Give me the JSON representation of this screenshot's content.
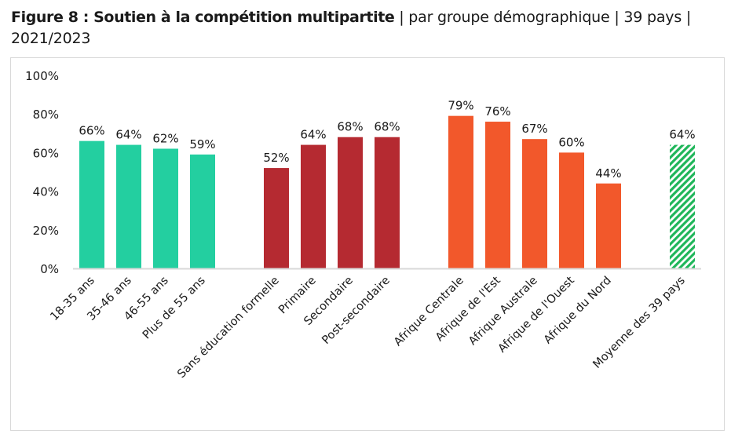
{
  "title": {
    "bold": "Figure 8 : Soutien à la compétition multipartite",
    "rest": " | par groupe démographique | 39 pays | 2021/2023"
  },
  "colors": {
    "age": "#23cfa0",
    "education": "#b52a31",
    "region": "#f2582b",
    "average": "#1fb65a",
    "axis": "#d9d9d9"
  },
  "chart_data": {
    "type": "bar",
    "title": "Figure 8 : Soutien à la compétition multipartite | par groupe démographique | 39 pays | 2021/2023",
    "xlabel": "",
    "ylabel": "",
    "ylim": [
      0,
      100
    ],
    "yticks": [
      "0%",
      "20%",
      "40%",
      "60%",
      "80%",
      "100%"
    ],
    "ytick_values": [
      0,
      20,
      40,
      60,
      80,
      100
    ],
    "grid": false,
    "legend": "none",
    "categories": [
      "18-35 ans",
      "35-46 ans",
      "46-55 ans",
      "Plus de 55 ans",
      "Sans éducation formelle",
      "Primaire",
      "Secondaire",
      "Post-secondaire",
      "Afrique Centrale",
      "Afrique de l'Est",
      "Afrique Australe",
      "Afrique de l'Ouest",
      "Afrique du Nord",
      "Moyenne des 39 pays"
    ],
    "values": [
      66,
      64,
      62,
      59,
      52,
      64,
      68,
      68,
      79,
      76,
      67,
      60,
      44,
      64
    ],
    "data_labels": [
      "66%",
      "64%",
      "62%",
      "59%",
      "52%",
      "64%",
      "68%",
      "68%",
      "79%",
      "76%",
      "67%",
      "60%",
      "44%",
      "64%"
    ],
    "groups": [
      {
        "name": "age",
        "indices": [
          0,
          1,
          2,
          3
        ],
        "color_key": "age"
      },
      {
        "name": "education",
        "indices": [
          4,
          5,
          6,
          7
        ],
        "color_key": "education"
      },
      {
        "name": "region",
        "indices": [
          8,
          9,
          10,
          11,
          12
        ],
        "color_key": "region"
      },
      {
        "name": "average",
        "indices": [
          13
        ],
        "color_key": "average",
        "pattern": "hatched"
      }
    ]
  }
}
